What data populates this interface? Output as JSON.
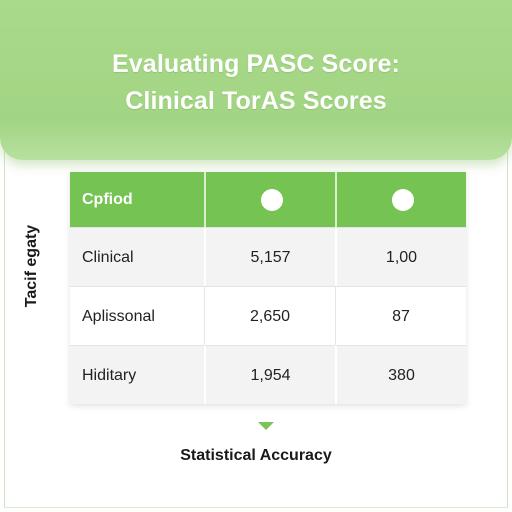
{
  "title_line1": "Evaluating PASC Score:",
  "title_line2": "Clinical TorAS Scores",
  "side_label": "Tacif egaty",
  "footer_label": "Statistical Accuracy",
  "colors": {
    "header_green": "#a2d583",
    "table_header_green": "#75c352",
    "arrow_green": "#7cc35a"
  },
  "chart_data": {
    "type": "table",
    "columns": [
      "Cpfiod",
      "",
      ""
    ],
    "column_markers": [
      "none",
      "white-circle",
      "white-circle"
    ],
    "rows": [
      {
        "label": "Clinical",
        "values": [
          "5,157",
          "1,00"
        ]
      },
      {
        "label": "Aplissonal",
        "values": [
          "2,650",
          "87"
        ]
      },
      {
        "label": "Hiditary",
        "values": [
          "1,954",
          "380"
        ]
      }
    ]
  }
}
